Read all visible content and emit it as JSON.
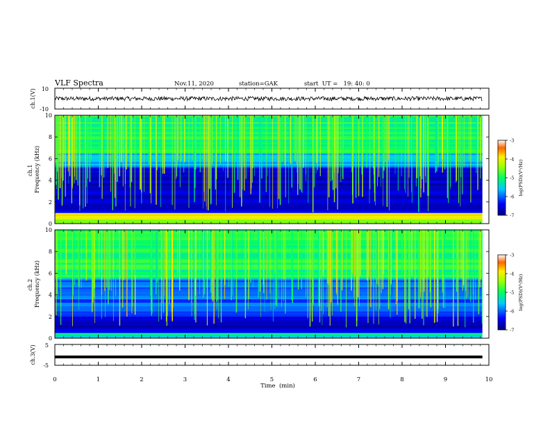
{
  "header": {
    "title": "VLF Spectra",
    "date": "Nov.11, 2020",
    "station": "station=GAK",
    "start": "start  UT =   19: 40: 0"
  },
  "chart_data": [
    {
      "type": "line",
      "name": "ch1-waveform",
      "ylabel": "ch.1(V)",
      "ylim": [
        -10,
        10
      ],
      "yticks": [
        "10",
        "-10"
      ],
      "xlim": [
        0,
        10
      ],
      "approx_mean": 0,
      "approx_amplitude": 2,
      "data_end_min": 9.85
    },
    {
      "type": "heatmap",
      "name": "ch1-spectrogram",
      "ylabel": "ch.1 Frequency (kHz)",
      "ylim": [
        0,
        10
      ],
      "yticks": [
        "0",
        "2",
        "4",
        "6",
        "8",
        "10"
      ],
      "xlim": [
        0,
        10
      ],
      "data_end_min": 9.85,
      "colorbar": {
        "label": "log(PSD)(V²/Hz)",
        "range": [
          -7,
          -3
        ],
        "ticks": [
          "-3",
          "-4",
          "-5",
          "-6",
          "-7"
        ]
      },
      "band_levels_logpsd": [
        {
          "from_khz": 0,
          "to_khz": 0.4,
          "level": -4.5
        },
        {
          "from_khz": 0.4,
          "to_khz": 1.0,
          "level": -3.8
        },
        {
          "from_khz": 1.0,
          "to_khz": 5.2,
          "level": -6.6
        },
        {
          "from_khz": 5.2,
          "to_khz": 6.5,
          "level": -5.6
        },
        {
          "from_khz": 6.5,
          "to_khz": 10,
          "level": -5.0
        }
      ]
    },
    {
      "type": "heatmap",
      "name": "ch2-spectrogram",
      "ylabel": "ch.2 Frequency (kHz)",
      "ylim": [
        0,
        10
      ],
      "yticks": [
        "0",
        "2",
        "4",
        "6",
        "8",
        "10"
      ],
      "xlim": [
        0,
        10
      ],
      "data_end_min": 9.85,
      "colorbar": {
        "label": "log(PSD)(V²/Hz)",
        "range": [
          -7,
          -3
        ],
        "ticks": [
          "-3",
          "-4",
          "-5",
          "-6",
          "-7"
        ]
      },
      "band_levels_logpsd": [
        {
          "from_khz": 0,
          "to_khz": 0.5,
          "level": -5.2
        },
        {
          "from_khz": 0.5,
          "to_khz": 2.0,
          "level": -6.7
        },
        {
          "from_khz": 2.0,
          "to_khz": 5.5,
          "level": -6.0
        },
        {
          "from_khz": 5.5,
          "to_khz": 10,
          "level": -5.0
        }
      ]
    },
    {
      "type": "line",
      "name": "ch3-waveform",
      "ylabel": "ch.3(V)",
      "ylim": [
        -5,
        5
      ],
      "yticks": [
        "5",
        "-5"
      ],
      "xlim": [
        0,
        10
      ],
      "approx_value": -1,
      "data_end_min": 9.85
    }
  ],
  "xaxis": {
    "label": "Time  (min)",
    "ticks": [
      "0",
      "1",
      "2",
      "3",
      "4",
      "5",
      "6",
      "7",
      "8",
      "9",
      "10"
    ]
  }
}
